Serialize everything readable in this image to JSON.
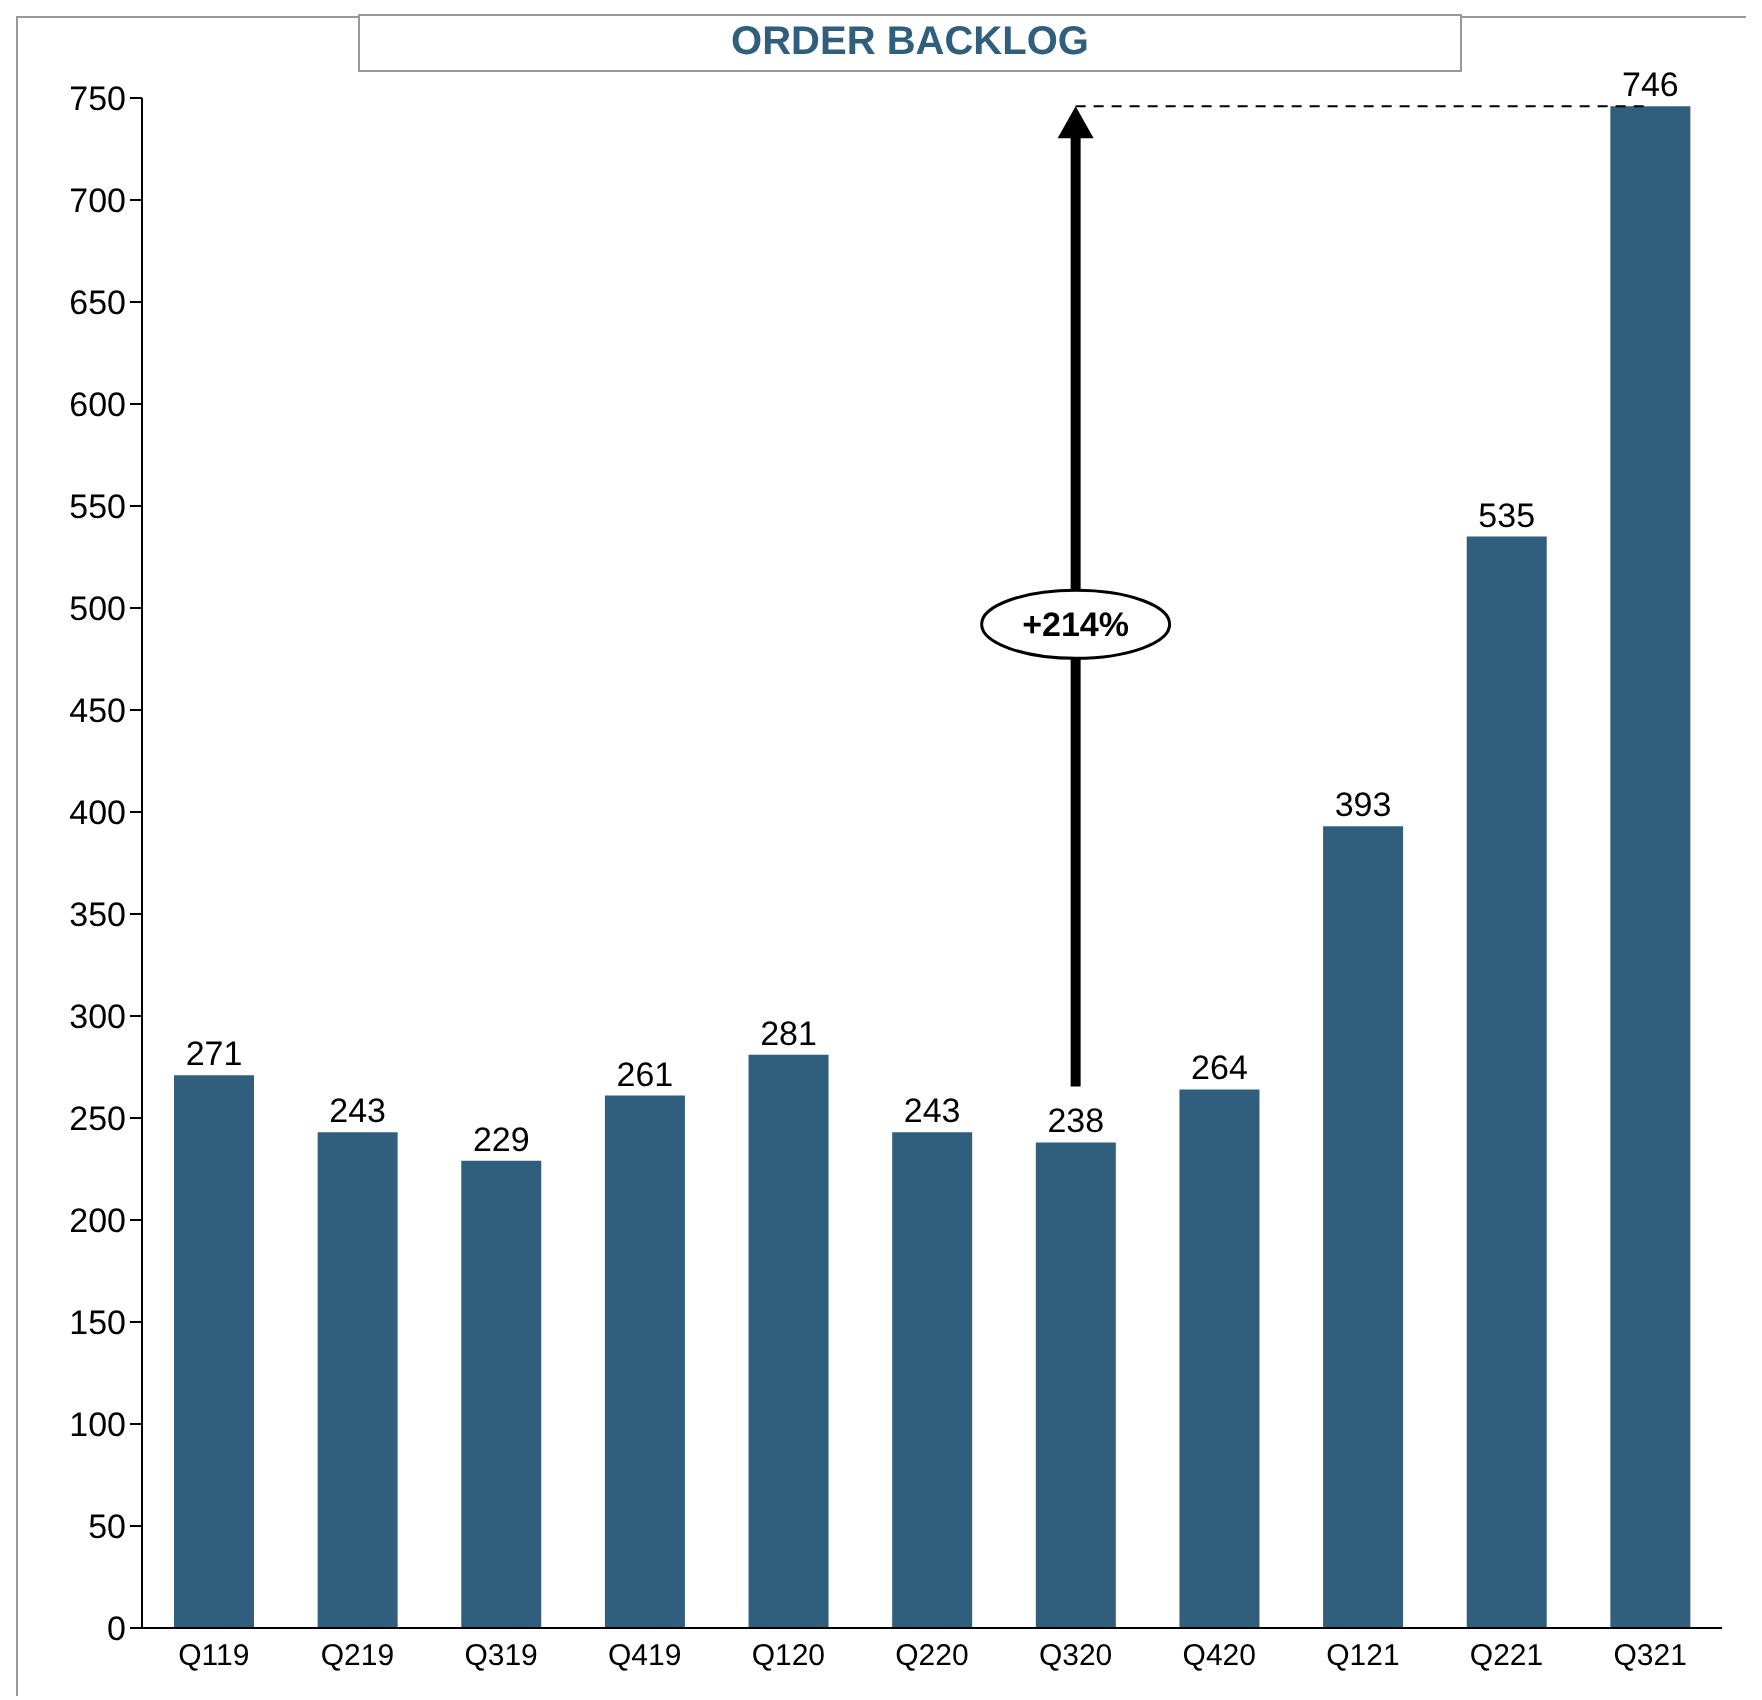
{
  "chart_data": {
    "type": "bar",
    "title": "ORDER BACKLOG",
    "categories": [
      "Q119",
      "Q219",
      "Q319",
      "Q419",
      "Q120",
      "Q220",
      "Q320",
      "Q420",
      "Q121",
      "Q221",
      "Q321"
    ],
    "values": [
      271,
      243,
      229,
      261,
      281,
      243,
      238,
      264,
      393,
      535,
      746
    ],
    "color": "#2f5f7c",
    "ylim": [
      0,
      750
    ],
    "yticks": [
      0,
      50,
      100,
      150,
      200,
      250,
      300,
      350,
      400,
      450,
      500,
      550,
      600,
      650,
      700,
      750
    ],
    "data_labels": true,
    "grid": false,
    "legend": false,
    "ref_lines": [
      {
        "axis": "y",
        "value": 746,
        "line_style": "dashed",
        "color": "#000000"
      }
    ],
    "annotations": [
      "+214%"
    ]
  }
}
